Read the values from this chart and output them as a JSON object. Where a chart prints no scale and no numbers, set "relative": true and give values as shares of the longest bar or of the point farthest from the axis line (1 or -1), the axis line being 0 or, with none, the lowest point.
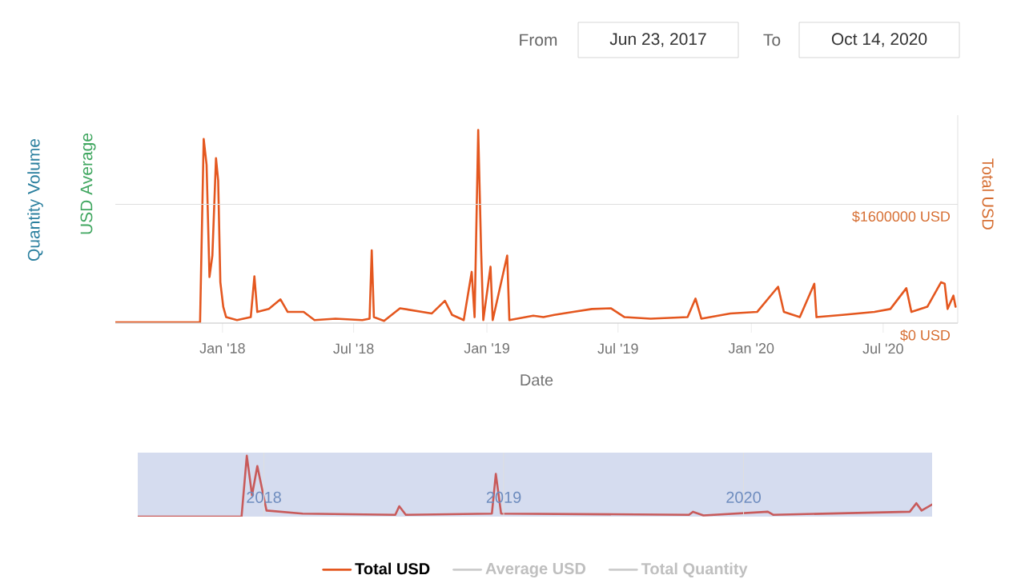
{
  "chart_data": [
    {
      "type": "line",
      "xlabel": "Date",
      "ylabel": "Total USD",
      "annotations": [
        "Quantity Volume",
        "USD Average",
        "From",
        "Jun 23, 2017",
        "To",
        "Oct 14, 2020"
      ],
      "x": [
        "2017-08-06",
        "2017-12-01",
        "2017-12-06",
        "2017-12-10",
        "2017-12-14",
        "2017-12-18",
        "2017-12-23",
        "2017-12-26",
        "2017-12-29",
        "2018-01-02",
        "2018-01-06",
        "2018-01-21",
        "2018-02-09",
        "2018-02-14",
        "2018-02-18",
        "2018-03-06",
        "2018-03-22",
        "2018-04-01",
        "2018-04-23",
        "2018-05-08",
        "2018-06-06",
        "2018-07-13",
        "2018-07-23",
        "2018-07-26",
        "2018-07-29",
        "2018-08-12",
        "2018-09-03",
        "2018-10-17",
        "2018-11-04",
        "2018-11-14",
        "2018-11-30",
        "2018-12-11",
        "2018-12-15",
        "2018-12-20",
        "2018-12-24",
        "2018-12-27",
        "2019-01-06",
        "2019-01-09",
        "2019-01-29",
        "2019-02-01",
        "2019-03-06",
        "2019-03-20",
        "2019-04-04",
        "2019-04-30",
        "2019-05-26",
        "2019-06-21",
        "2019-07-10",
        "2019-08-15",
        "2019-10-05",
        "2019-10-16",
        "2019-10-24",
        "2019-12-03",
        "2020-01-09",
        "2020-02-07",
        "2020-02-15",
        "2020-03-08",
        "2020-03-28",
        "2020-03-31",
        "2020-05-06",
        "2020-06-19",
        "2020-07-11",
        "2020-08-02",
        "2020-08-09",
        "2020-08-31",
        "2020-09-19",
        "2020-09-24",
        "2020-09-28",
        "2020-10-06",
        "2020-10-09"
      ],
      "series": [
        {
          "name": "Total USD",
          "color": "#e4571f",
          "values": [
            10000,
            10000,
            2480000,
            2130000,
            620000,
            910000,
            2220000,
            1920000,
            550000,
            220000,
            80000,
            40000,
            80000,
            630000,
            150000,
            190000,
            320000,
            150000,
            150000,
            40000,
            60000,
            40000,
            60000,
            980000,
            80000,
            30000,
            200000,
            130000,
            300000,
            110000,
            40000,
            690000,
            80000,
            2600000,
            980000,
            40000,
            760000,
            40000,
            910000,
            40000,
            100000,
            80000,
            110000,
            150000,
            190000,
            200000,
            80000,
            60000,
            80000,
            330000,
            60000,
            130000,
            150000,
            490000,
            150000,
            80000,
            530000,
            80000,
            110000,
            150000,
            190000,
            470000,
            150000,
            220000,
            550000,
            530000,
            190000,
            370000,
            220000
          ]
        },
        {
          "name": "Average USD",
          "color": "#cccccc",
          "values": [
            null,
            null,
            null,
            null,
            null,
            null,
            null,
            null,
            null,
            null,
            null,
            null,
            null,
            null,
            null,
            null,
            null,
            null,
            null,
            null,
            null,
            null,
            null,
            null,
            null,
            null,
            null,
            null,
            null,
            null,
            null,
            null,
            null,
            null,
            null,
            null,
            null,
            null,
            null,
            null,
            null,
            null,
            null,
            null,
            null,
            null,
            null,
            null,
            null,
            null,
            null,
            null,
            null,
            null,
            null,
            null,
            null,
            null,
            null,
            null,
            null,
            null,
            null,
            null,
            null,
            null,
            null,
            null,
            null
          ]
        },
        {
          "name": "Total Quantity",
          "color": "#cccccc",
          "values": [
            null,
            null,
            null,
            null,
            null,
            null,
            null,
            null,
            null,
            null,
            null,
            null,
            null,
            null,
            null,
            null,
            null,
            null,
            null,
            null,
            null,
            null,
            null,
            null,
            null,
            null,
            null,
            null,
            null,
            null,
            null,
            null,
            null,
            null,
            null,
            null,
            null,
            null,
            null,
            null,
            null,
            null,
            null,
            null,
            null,
            null,
            null,
            null,
            null,
            null,
            null,
            null,
            null,
            null,
            null,
            null,
            null,
            null,
            null,
            null,
            null,
            null,
            null,
            null,
            null,
            null,
            null,
            null,
            null
          ]
        }
      ],
      "xlim": [
        "2017-08-06",
        "2020-10-12"
      ],
      "xticks": [
        {
          "value": "2018-01-01",
          "label": "Jan '18"
        },
        {
          "value": "2018-07-01",
          "label": "Jul '18"
        },
        {
          "value": "2019-01-01",
          "label": "Jan '19"
        },
        {
          "value": "2019-07-01",
          "label": "Jul '19"
        },
        {
          "value": "2020-01-01",
          "label": "Jan '20"
        },
        {
          "value": "2020-07-01",
          "label": "Jul '20"
        }
      ],
      "ylim": [
        0,
        2800000
      ],
      "yticks": [
        {
          "value": 0,
          "label": "$0 USD"
        },
        {
          "value": 1600000,
          "label": "$1600000 USD"
        }
      ],
      "grid": "y",
      "legend": "bottom",
      "marker": "none",
      "line_style": "solid"
    },
    {
      "type": "line",
      "relative": true,
      "x": [
        "2017-06-23",
        "2017-11-28",
        "2017-12-06",
        "2017-12-14",
        "2017-12-22",
        "2018-01-05",
        "2018-03-01",
        "2018-07-20",
        "2018-07-26",
        "2018-08-05",
        "2018-12-14",
        "2018-12-20",
        "2018-12-28",
        "2019-10-10",
        "2019-10-16",
        "2019-11-01",
        "2020-02-07",
        "2020-02-15",
        "2020-09-10",
        "2020-09-20",
        "2020-09-28",
        "2020-10-14"
      ],
      "series": [
        {
          "color": "#c85a5a",
          "values": [
            0,
            0,
            1.0,
            0.35,
            0.83,
            0.1,
            0.05,
            0.03,
            0.17,
            0.03,
            0.05,
            0.7,
            0.05,
            0.03,
            0.08,
            0.02,
            0.08,
            0.03,
            0.08,
            0.22,
            0.1,
            0.2
          ]
        }
      ],
      "xlim": [
        "2017-06-23",
        "2020-10-14"
      ],
      "xticks": [
        {
          "value": "2018-01-01",
          "label": "2018"
        },
        {
          "value": "2019-01-01",
          "label": "2019"
        },
        {
          "value": "2020-01-01",
          "label": "2020"
        }
      ],
      "grid": "x",
      "marker": "none",
      "line_style": "solid"
    }
  ]
}
